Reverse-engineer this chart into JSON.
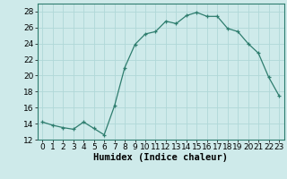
{
  "x": [
    0,
    1,
    2,
    3,
    4,
    5,
    6,
    7,
    8,
    9,
    10,
    11,
    12,
    13,
    14,
    15,
    16,
    17,
    18,
    19,
    20,
    21,
    22,
    23
  ],
  "y": [
    14.2,
    13.8,
    13.5,
    13.3,
    14.2,
    13.4,
    12.6,
    16.2,
    21.0,
    23.9,
    25.2,
    25.5,
    26.8,
    26.5,
    27.5,
    27.9,
    27.4,
    27.4,
    25.9,
    25.5,
    24.0,
    22.8,
    19.8,
    17.5
  ],
  "line_color": "#2e7d6e",
  "marker": "+",
  "marker_size": 3,
  "bg_color": "#ceeaea",
  "grid_color": "#b0d8d8",
  "xlabel": "Humidex (Indice chaleur)",
  "ylim": [
    12,
    29
  ],
  "xlim": [
    -0.5,
    23.5
  ],
  "yticks": [
    12,
    14,
    16,
    18,
    20,
    22,
    24,
    26,
    28
  ],
  "xticks": [
    0,
    1,
    2,
    3,
    4,
    5,
    6,
    7,
    8,
    9,
    10,
    11,
    12,
    13,
    14,
    15,
    16,
    17,
    18,
    19,
    20,
    21,
    22,
    23
  ],
  "xlabel_fontsize": 7.5,
  "tick_fontsize": 6.5
}
